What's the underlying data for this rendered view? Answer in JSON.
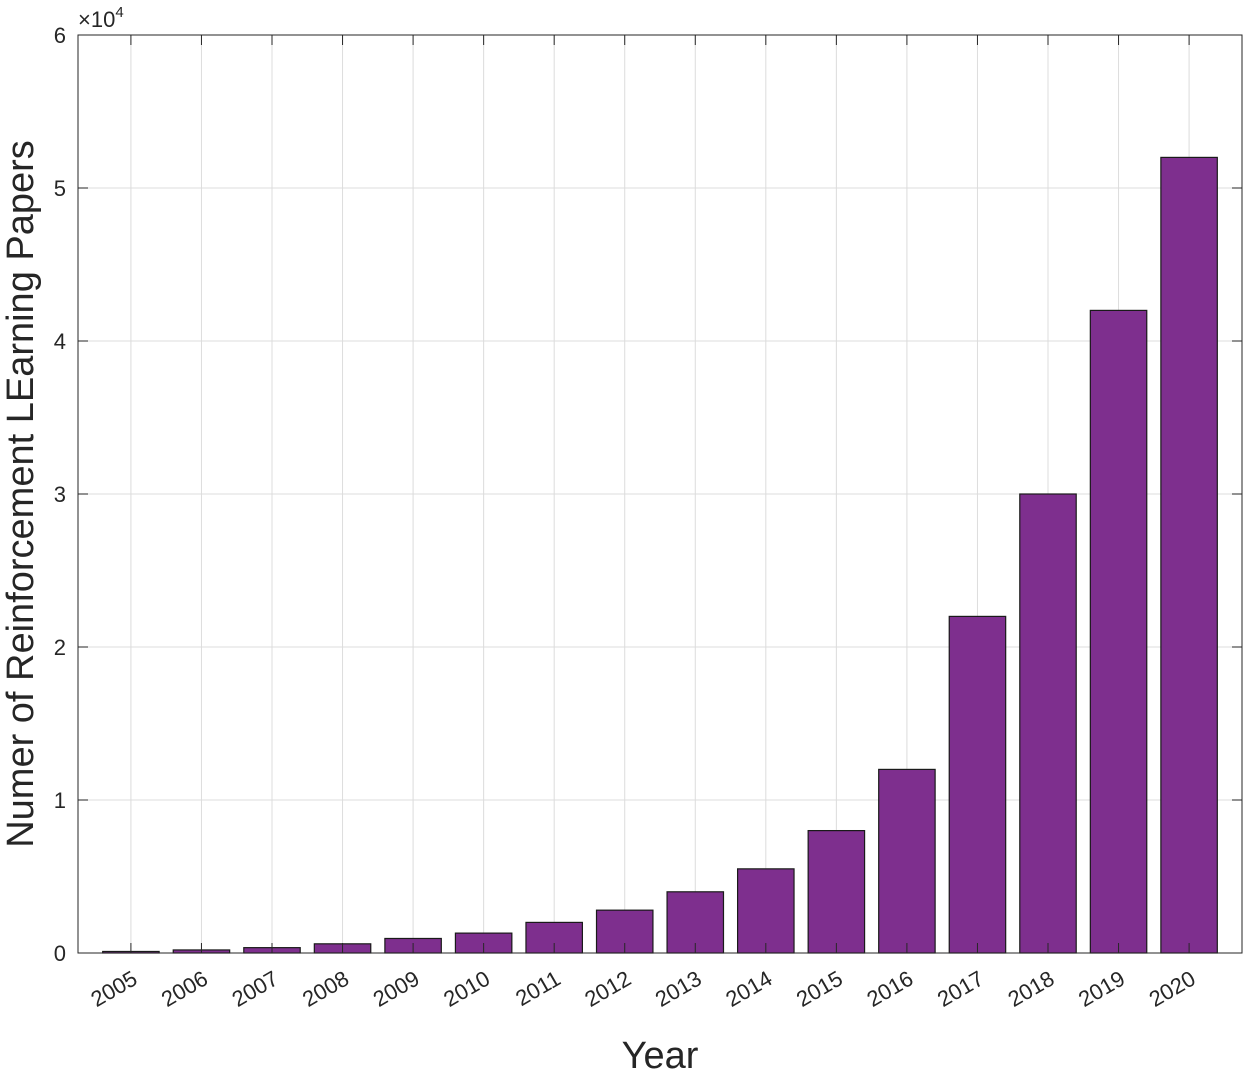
{
  "chart_data": {
    "type": "bar",
    "xlabel": "Year",
    "ylabel": "Numer of Reinforcement LEarning Papers",
    "categories": [
      "2005",
      "2006",
      "2007",
      "2008",
      "2009",
      "2010",
      "2011",
      "2012",
      "2013",
      "2014",
      "2015",
      "2016",
      "2017",
      "2018",
      "2019",
      "2020"
    ],
    "values": [
      100,
      200,
      350,
      600,
      950,
      1300,
      2000,
      2800,
      4000,
      5500,
      8000,
      12000,
      22000,
      30000,
      42000,
      52000
    ],
    "ylim": [
      0,
      60000
    ],
    "yticks": [
      0,
      10000,
      20000,
      30000,
      40000,
      50000,
      60000
    ],
    "ytick_labels": [
      "0",
      "1",
      "2",
      "3",
      "4",
      "5",
      "6"
    ],
    "exponent_label": {
      "base": "×10",
      "power": "4"
    },
    "grid": true,
    "bar_color": "#7E2F8E",
    "edge_color": "#1a1a1a"
  }
}
